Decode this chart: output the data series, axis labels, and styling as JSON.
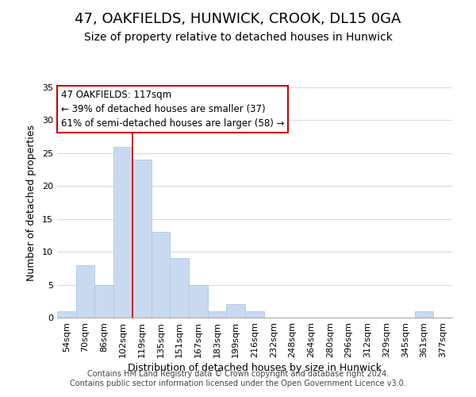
{
  "title": "47, OAKFIELDS, HUNWICK, CROOK, DL15 0GA",
  "subtitle": "Size of property relative to detached houses in Hunwick",
  "xlabel": "Distribution of detached houses by size in Hunwick",
  "ylabel": "Number of detached properties",
  "footer_line1": "Contains HM Land Registry data © Crown copyright and database right 2024.",
  "footer_line2": "Contains public sector information licensed under the Open Government Licence v3.0.",
  "bin_labels": [
    "54sqm",
    "70sqm",
    "86sqm",
    "102sqm",
    "119sqm",
    "135sqm",
    "151sqm",
    "167sqm",
    "183sqm",
    "199sqm",
    "216sqm",
    "232sqm",
    "248sqm",
    "264sqm",
    "280sqm",
    "296sqm",
    "312sqm",
    "329sqm",
    "345sqm",
    "361sqm",
    "377sqm"
  ],
  "bin_counts": [
    1,
    8,
    5,
    26,
    24,
    13,
    9,
    5,
    1,
    2,
    1,
    0,
    0,
    0,
    0,
    0,
    0,
    0,
    0,
    1,
    0
  ],
  "bar_color": "#c9daf0",
  "bar_edge_color": "#aec8e8",
  "grid_color": "#d0dce8",
  "property_label": "47 OAKFIELDS: 117sqm",
  "annotation_line1": "← 39% of detached houses are smaller (37)",
  "annotation_line2": "61% of semi-detached houses are larger (58) →",
  "vline_color": "#cc0000",
  "vline_x": 3.5,
  "ylim": [
    0,
    35
  ],
  "yticks": [
    0,
    5,
    10,
    15,
    20,
    25,
    30,
    35
  ],
  "background_color": "#ffffff",
  "title_fontsize": 13,
  "subtitle_fontsize": 10,
  "axis_label_fontsize": 9,
  "tick_fontsize": 8,
  "footer_fontsize": 7
}
